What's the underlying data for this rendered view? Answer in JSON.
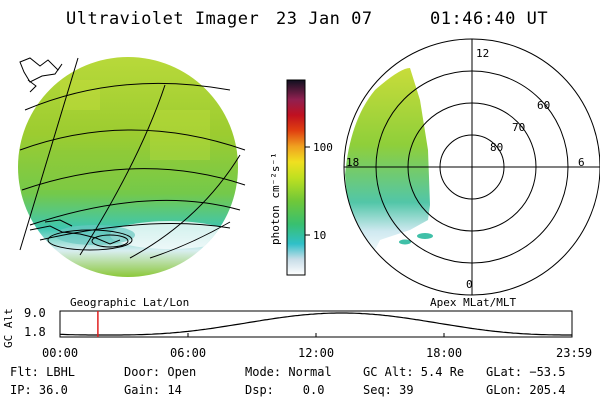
{
  "header": {
    "instrument": "Ultraviolet Imager",
    "date": "23 Jan 07",
    "time": "01:46:40 UT"
  },
  "colorbar": {
    "unit_label": "photon cm⁻²s⁻¹",
    "ticks": [
      "100",
      "10"
    ]
  },
  "left_panel": {
    "label": "Geographic Lat/Lon"
  },
  "right_panel": {
    "label": "Apex MLat/MLT",
    "mlt_labels": {
      "top": "12",
      "left": "18",
      "right": "6",
      "bottom": "0"
    },
    "mlat_labels": [
      "60",
      "70",
      "80"
    ]
  },
  "timeline": {
    "ylabel": "GC Alt",
    "y_ticks": [
      "9.0",
      "1.8"
    ],
    "x_ticks": [
      "00:00",
      "06:00",
      "12:00",
      "18:00",
      "23:59"
    ],
    "current_time_fraction": 0.074
  },
  "status": {
    "flt": "Flt: LBHL",
    "ip": "IP: 36.0",
    "door": "Door: Open",
    "gain": "Gain: 14",
    "mode": "Mode: Normal",
    "dsp": "Dsp:    0.0",
    "gc_alt": "GC Alt: 5.4 Re",
    "seq": "Seq: 39",
    "glat": "GLat: −53.5",
    "glon": "GLon: 205.4"
  }
}
